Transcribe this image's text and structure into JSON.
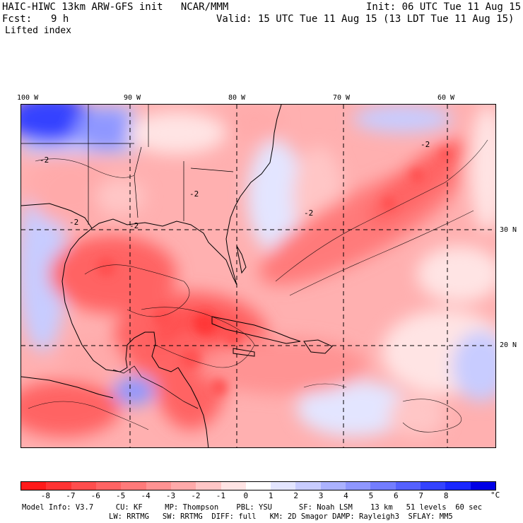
{
  "header": {
    "title": "HAIC-HIWC 13km ARW-GFS init   NCAR/MMM",
    "fcst_label": "Fcst:",
    "fcst_value": "9 h",
    "field": "Lifted index",
    "init": "Init: 06 UTC Tue 11 Aug 15",
    "valid": "Valid: 15 UTC Tue 11 Aug 15 (13 LDT Tue 11 Aug 15)"
  },
  "map": {
    "lon_labels": [
      "100 W",
      "90 W",
      "80 W",
      "70 W",
      "60 W"
    ],
    "lat_labels": [
      "30 N",
      "20 N"
    ],
    "contour_labels": [
      "-2",
      "-2",
      "-2",
      "-2",
      "-2",
      "-2"
    ]
  },
  "colorbar": {
    "colors": [
      "#ff1a1a",
      "#ff3333",
      "#ff4d4d",
      "#ff6464",
      "#ff7a7a",
      "#ff9393",
      "#ffaaaa",
      "#ffc6c6",
      "#ffe4e4",
      "#ffffff",
      "#e3e5ff",
      "#c8ccff",
      "#abb2ff",
      "#8f97ff",
      "#737dff",
      "#5561ff",
      "#3443ff",
      "#1a28ff",
      "#0000e6"
    ],
    "tick_labels": [
      "-8",
      "-7",
      "-6",
      "-5",
      "-4",
      "-3",
      "-2",
      "-1",
      "0",
      "1",
      "2",
      "3",
      "4",
      "5",
      "6",
      "7",
      "8"
    ],
    "unit": "°C"
  },
  "footer": {
    "line1": "Model Info: V3.7     CU: KF     MP: Thompson    PBL: YSU      SF: Noah LSM    13 km   51 levels  60 sec",
    "line2": "LW: RRTMG   SW: RRTMG  DIFF: full   KM: 2D Smagor DAMP: Rayleigh3  SFLAY: MM5"
  }
}
